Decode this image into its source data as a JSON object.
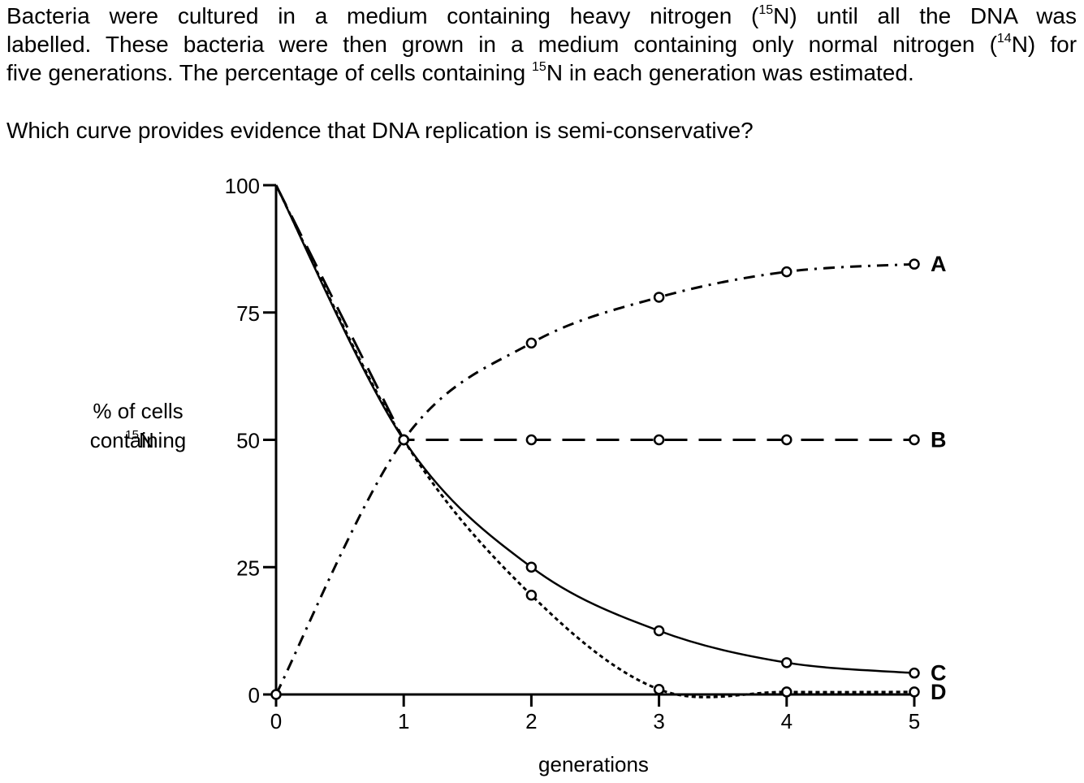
{
  "question": {
    "line1_a": "Bacteria were cultured in a medium containing heavy nitrogen (",
    "line1_sup": "15",
    "line1_b": "N) until all the DNA was",
    "line2_a": "labelled. These bacteria were then grown in a medium containing only normal nitrogen (",
    "line2_sup": "14",
    "line2_b": "N) for",
    "line3_a": "five generations. The percentage of cells containing ",
    "line3_sup": "15",
    "line3_b": "N in each generation was estimated.",
    "prompt": "Which curve provides evidence that DNA replication is semi-conservative?"
  },
  "chart_data": {
    "type": "line",
    "xlabel": "generations",
    "ylabel_lines": [
      "% of cells",
      "containing"
    ],
    "ylabel_sup": "15",
    "ylabel_end": "N",
    "xlim": [
      0,
      5
    ],
    "ylim": [
      0,
      100
    ],
    "x_ticks": [
      0,
      1,
      2,
      3,
      4,
      5
    ],
    "y_ticks": [
      0,
      25,
      50,
      75,
      100
    ],
    "grid": false,
    "series": [
      {
        "name": "A",
        "style": "dashdot",
        "x": [
          0,
          1,
          2,
          3,
          4,
          5
        ],
        "y": [
          0,
          50,
          69,
          78,
          83,
          84.5
        ]
      },
      {
        "name": "B",
        "style": "longdash",
        "x": [
          0,
          1,
          2,
          3,
          4,
          5
        ],
        "y": [
          100,
          50,
          50,
          50,
          50,
          50
        ]
      },
      {
        "name": "C",
        "style": "solid",
        "x": [
          0,
          1,
          2,
          3,
          4,
          5
        ],
        "y": [
          100,
          50,
          25,
          12.5,
          6.25,
          4.2
        ]
      },
      {
        "name": "D",
        "style": "dotted",
        "x": [
          0,
          1,
          2,
          3,
          4,
          5
        ],
        "y": [
          100,
          50,
          19.5,
          1,
          0.5,
          0.5
        ]
      }
    ]
  }
}
